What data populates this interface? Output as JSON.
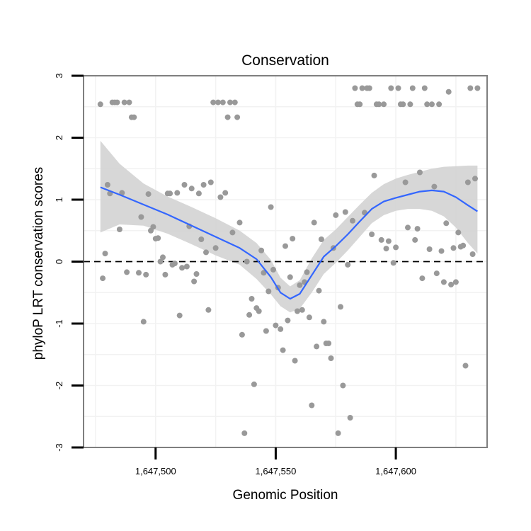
{
  "chart_data": {
    "type": "scatter",
    "title": "Conservation",
    "xlabel": "Genomic Position",
    "ylabel": "phyloP LRT conservation scores",
    "xlim": [
      1647470,
      1647638
    ],
    "ylim": [
      -3.0,
      3.0
    ],
    "x_ticks": [
      1647500,
      1647550,
      1647600
    ],
    "x_tick_labels": [
      "1,647,500",
      "1,647,550",
      "1,647,600"
    ],
    "y_ticks": [
      3,
      2,
      1,
      0,
      -1,
      -2,
      -3
    ],
    "y_tick_labels": [
      "3",
      "2",
      "1",
      "0",
      "-1",
      "-2",
      "-3"
    ],
    "reference_line": {
      "y": 0,
      "style": "dashed"
    },
    "grid": true,
    "colors": {
      "points": "#999999",
      "smooth_line": "#3366ff",
      "confidence_band": "#d3d3d3",
      "panel_border": "#7f7f7f",
      "grid": "#f2f2f2"
    },
    "series": [
      {
        "name": "phyloP scores",
        "points": [
          [
            1647477,
            2.54
          ],
          [
            1647478,
            -0.27
          ],
          [
            1647479,
            0.13
          ],
          [
            1647480,
            1.24
          ],
          [
            1647481,
            1.1
          ],
          [
            1647482,
            2.57
          ],
          [
            1647483,
            2.57
          ],
          [
            1647484,
            2.57
          ],
          [
            1647485,
            0.52
          ],
          [
            1647486,
            1.11
          ],
          [
            1647487,
            2.57
          ],
          [
            1647488,
            -0.17
          ],
          [
            1647489,
            2.57
          ],
          [
            1647490,
            2.33
          ],
          [
            1647491,
            2.33
          ],
          [
            1647493,
            -0.18
          ],
          [
            1647494,
            0.72
          ],
          [
            1647495,
            -0.97
          ],
          [
            1647496,
            -0.21
          ],
          [
            1647497,
            1.09
          ],
          [
            1647498,
            0.5
          ],
          [
            1647499,
            0.56
          ],
          [
            1647500,
            0.37
          ],
          [
            1647501,
            0.38
          ],
          [
            1647502,
            0.0
          ],
          [
            1647503,
            0.07
          ],
          [
            1647504,
            -0.21
          ],
          [
            1647505,
            1.1
          ],
          [
            1647506,
            1.1
          ],
          [
            1647507,
            -0.05
          ],
          [
            1647508,
            -0.03
          ],
          [
            1647509,
            1.11
          ],
          [
            1647510,
            -0.87
          ],
          [
            1647511,
            -0.1
          ],
          [
            1647512,
            1.24
          ],
          [
            1647513,
            -0.08
          ],
          [
            1647514,
            0.57
          ],
          [
            1647515,
            1.18
          ],
          [
            1647516,
            -0.32
          ],
          [
            1647517,
            -0.2
          ],
          [
            1647518,
            1.1
          ],
          [
            1647519,
            0.36
          ],
          [
            1647520,
            1.24
          ],
          [
            1647521,
            0.15
          ],
          [
            1647522,
            -0.78
          ],
          [
            1647523,
            1.28
          ],
          [
            1647524,
            2.57
          ],
          [
            1647525,
            0.22
          ],
          [
            1647526,
            2.57
          ],
          [
            1647527,
            1.04
          ],
          [
            1647528,
            2.57
          ],
          [
            1647529,
            1.11
          ],
          [
            1647530,
            2.33
          ],
          [
            1647531,
            2.57
          ],
          [
            1647532,
            0.47
          ],
          [
            1647533,
            2.57
          ],
          [
            1647534,
            2.33
          ],
          [
            1647535,
            0.63
          ],
          [
            1647536,
            -1.18
          ],
          [
            1647537,
            -2.77
          ],
          [
            1647538,
            0.0
          ],
          [
            1647539,
            -0.86
          ],
          [
            1647540,
            -0.6
          ],
          [
            1647541,
            -1.98
          ],
          [
            1647542,
            -0.75
          ],
          [
            1647543,
            -0.8
          ],
          [
            1647544,
            0.18
          ],
          [
            1647545,
            -0.18
          ],
          [
            1647546,
            -1.12
          ],
          [
            1647547,
            -0.48
          ],
          [
            1647548,
            0.88
          ],
          [
            1647549,
            -0.13
          ],
          [
            1647550,
            -1.03
          ],
          [
            1647551,
            -0.42
          ],
          [
            1647552,
            -1.09
          ],
          [
            1647553,
            -1.43
          ],
          [
            1647554,
            0.25
          ],
          [
            1647555,
            -0.95
          ],
          [
            1647556,
            -0.25
          ],
          [
            1647557,
            0.37
          ],
          [
            1647558,
            -1.6
          ],
          [
            1647559,
            -0.8
          ],
          [
            1647560,
            -0.38
          ],
          [
            1647561,
            -0.78
          ],
          [
            1647562,
            -0.33
          ],
          [
            1647563,
            -0.17
          ],
          [
            1647564,
            -0.9
          ],
          [
            1647565,
            -2.32
          ],
          [
            1647566,
            0.63
          ],
          [
            1647567,
            -1.37
          ],
          [
            1647568,
            -0.47
          ],
          [
            1647569,
            0.36
          ],
          [
            1647570,
            -0.97
          ],
          [
            1647571,
            -1.32
          ],
          [
            1647572,
            -1.32
          ],
          [
            1647573,
            -1.56
          ],
          [
            1647574,
            0.22
          ],
          [
            1647575,
            0.75
          ],
          [
            1647576,
            -2.77
          ],
          [
            1647577,
            -0.73
          ],
          [
            1647578,
            -2.0
          ],
          [
            1647579,
            0.8
          ],
          [
            1647580,
            -0.05
          ],
          [
            1647581,
            -2.52
          ],
          [
            1647582,
            0.66
          ],
          [
            1647583,
            2.8
          ],
          [
            1647584,
            2.54
          ],
          [
            1647585,
            2.54
          ],
          [
            1647586,
            2.8
          ],
          [
            1647587,
            0.79
          ],
          [
            1647588,
            2.8
          ],
          [
            1647589,
            2.8
          ],
          [
            1647590,
            0.44
          ],
          [
            1647591,
            1.39
          ],
          [
            1647592,
            2.54
          ],
          [
            1647593,
            2.54
          ],
          [
            1647594,
            0.35
          ],
          [
            1647595,
            2.54
          ],
          [
            1647596,
            0.21
          ],
          [
            1647597,
            0.33
          ],
          [
            1647598,
            2.8
          ],
          [
            1647599,
            -0.02
          ],
          [
            1647600,
            0.23
          ],
          [
            1647601,
            2.8
          ],
          [
            1647602,
            2.54
          ],
          [
            1647603,
            2.54
          ],
          [
            1647604,
            1.28
          ],
          [
            1647605,
            0.55
          ],
          [
            1647606,
            2.54
          ],
          [
            1647607,
            2.8
          ],
          [
            1647608,
            0.35
          ],
          [
            1647609,
            0.53
          ],
          [
            1647610,
            1.44
          ],
          [
            1647611,
            -0.27
          ],
          [
            1647612,
            2.8
          ],
          [
            1647613,
            2.54
          ],
          [
            1647614,
            0.2
          ],
          [
            1647615,
            2.54
          ],
          [
            1647616,
            1.21
          ],
          [
            1647617,
            -0.19
          ],
          [
            1647618,
            2.54
          ],
          [
            1647619,
            0.17
          ],
          [
            1647620,
            -0.33
          ],
          [
            1647621,
            0.62
          ],
          [
            1647622,
            2.74
          ],
          [
            1647623,
            -0.37
          ],
          [
            1647624,
            0.22
          ],
          [
            1647625,
            -0.33
          ],
          [
            1647626,
            0.47
          ],
          [
            1647627,
            0.24
          ],
          [
            1647628,
            0.26
          ],
          [
            1647629,
            -1.68
          ],
          [
            1647630,
            1.28
          ],
          [
            1647631,
            2.8
          ],
          [
            1647632,
            0.12
          ],
          [
            1647633,
            1.34
          ],
          [
            1647634,
            2.8
          ]
        ]
      }
    ],
    "smooth": {
      "name": "loess fit",
      "x": [
        1647477,
        1647485,
        1647495,
        1647505,
        1647515,
        1647525,
        1647535,
        1647542,
        1647548,
        1647552,
        1647556,
        1647560,
        1647565,
        1647570,
        1647575,
        1647580,
        1647585,
        1647590,
        1647595,
        1647600,
        1647605,
        1647610,
        1647615,
        1647620,
        1647625,
        1647630,
        1647634
      ],
      "y": [
        1.2,
        1.08,
        0.92,
        0.76,
        0.58,
        0.4,
        0.22,
        0.04,
        -0.25,
        -0.5,
        -0.6,
        -0.52,
        -0.22,
        0.08,
        0.25,
        0.44,
        0.65,
        0.85,
        0.97,
        1.03,
        1.08,
        1.13,
        1.15,
        1.13,
        1.04,
        0.91,
        0.81
      ],
      "lower": [
        0.47,
        0.6,
        0.58,
        0.45,
        0.28,
        0.1,
        -0.05,
        -0.28,
        -0.53,
        -0.72,
        -0.82,
        -0.76,
        -0.5,
        -0.2,
        -0.02,
        0.18,
        0.4,
        0.62,
        0.75,
        0.82,
        0.85,
        0.85,
        0.82,
        0.73,
        0.55,
        0.3,
        0.13
      ],
      "upper": [
        1.95,
        1.58,
        1.26,
        1.05,
        0.88,
        0.7,
        0.5,
        0.3,
        0.03,
        -0.26,
        -0.4,
        -0.3,
        0.05,
        0.35,
        0.52,
        0.72,
        0.92,
        1.11,
        1.25,
        1.34,
        1.4,
        1.45,
        1.5,
        1.53,
        1.54,
        1.55,
        1.55
      ]
    }
  }
}
